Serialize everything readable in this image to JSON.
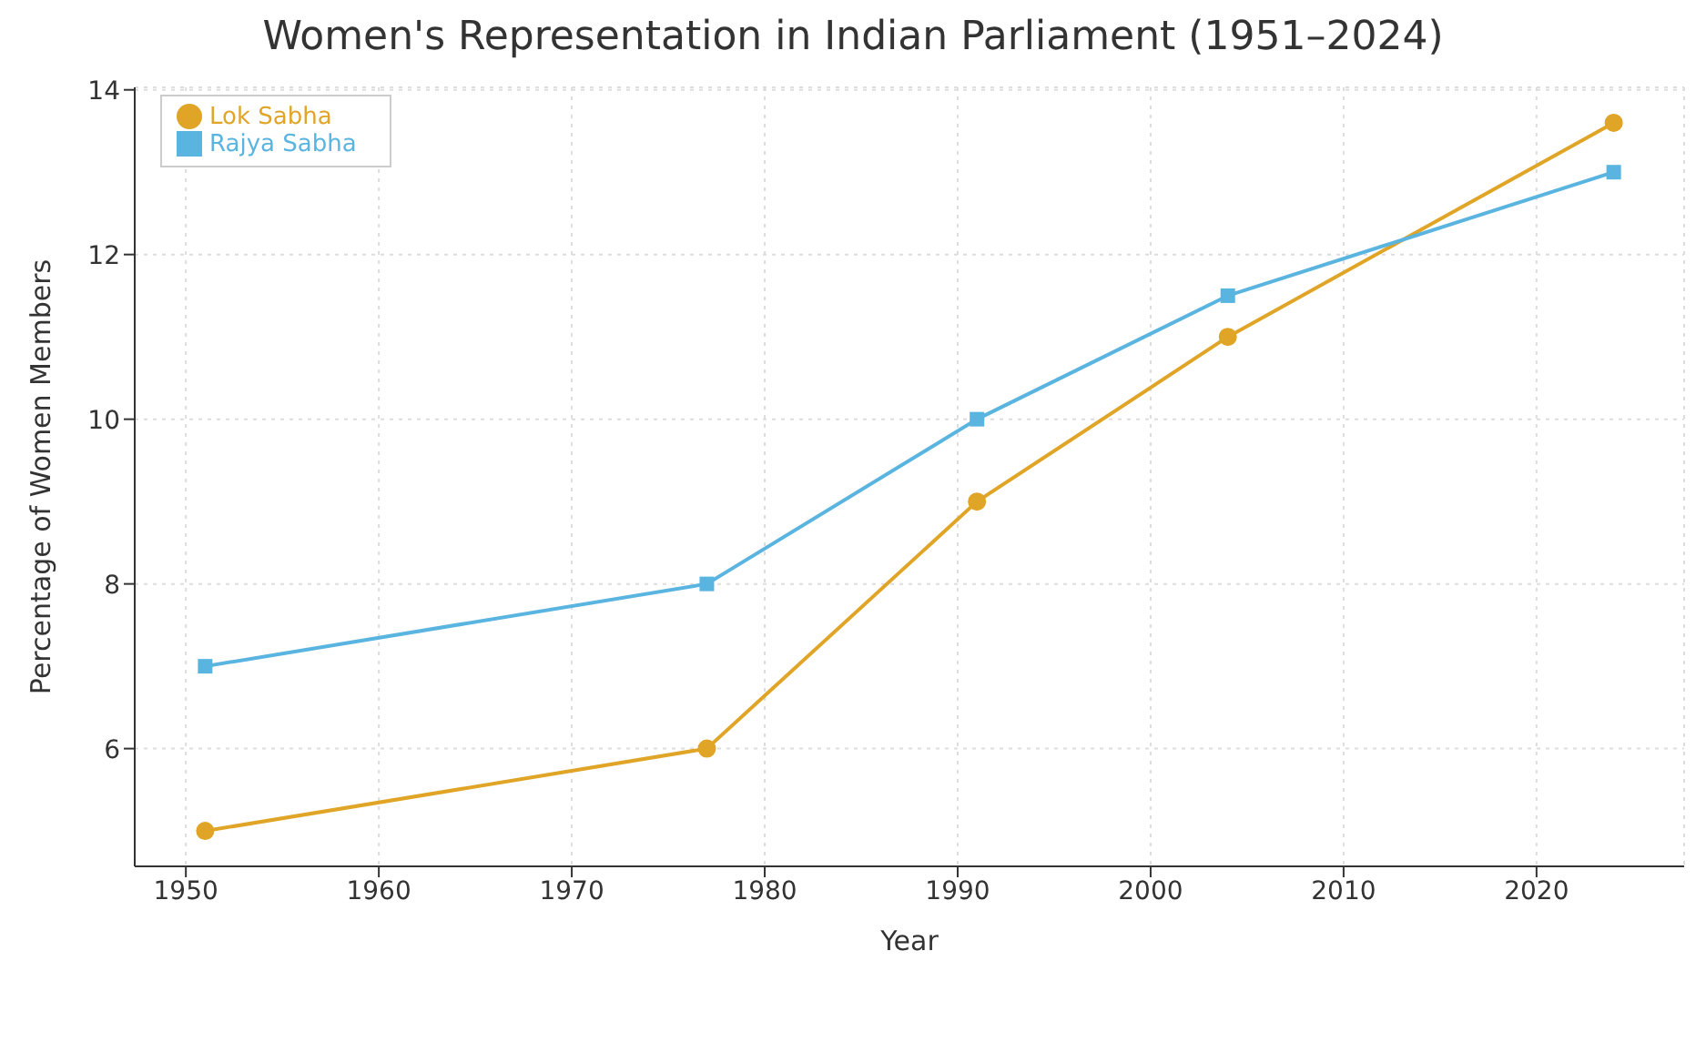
{
  "chart_data": {
    "type": "line",
    "title": "Women's Representation in Indian Parliament (1951–2024)",
    "xlabel": "Year",
    "ylabel": "Percentage of Women Members",
    "x": [
      1951,
      1977,
      1991,
      2004,
      2024
    ],
    "series": [
      {
        "name": "Lok Sabha",
        "color": "#e0a526",
        "marker": "circle",
        "values": [
          5,
          6,
          9,
          11,
          13.6
        ]
      },
      {
        "name": "Rajya Sabha",
        "color": "#5ab4e0",
        "marker": "square",
        "values": [
          7,
          8,
          10,
          11.5,
          13
        ]
      }
    ],
    "xlim": [
      1947.35,
      2027.65
    ],
    "xticks": [
      1950,
      1960,
      1970,
      1980,
      1990,
      2000,
      2010,
      2020
    ],
    "ylim": [
      4.57,
      14.03
    ],
    "yticks": [
      6,
      8,
      10,
      12,
      14
    ],
    "grid": true,
    "legend": "top left",
    "line_style": "solid"
  }
}
